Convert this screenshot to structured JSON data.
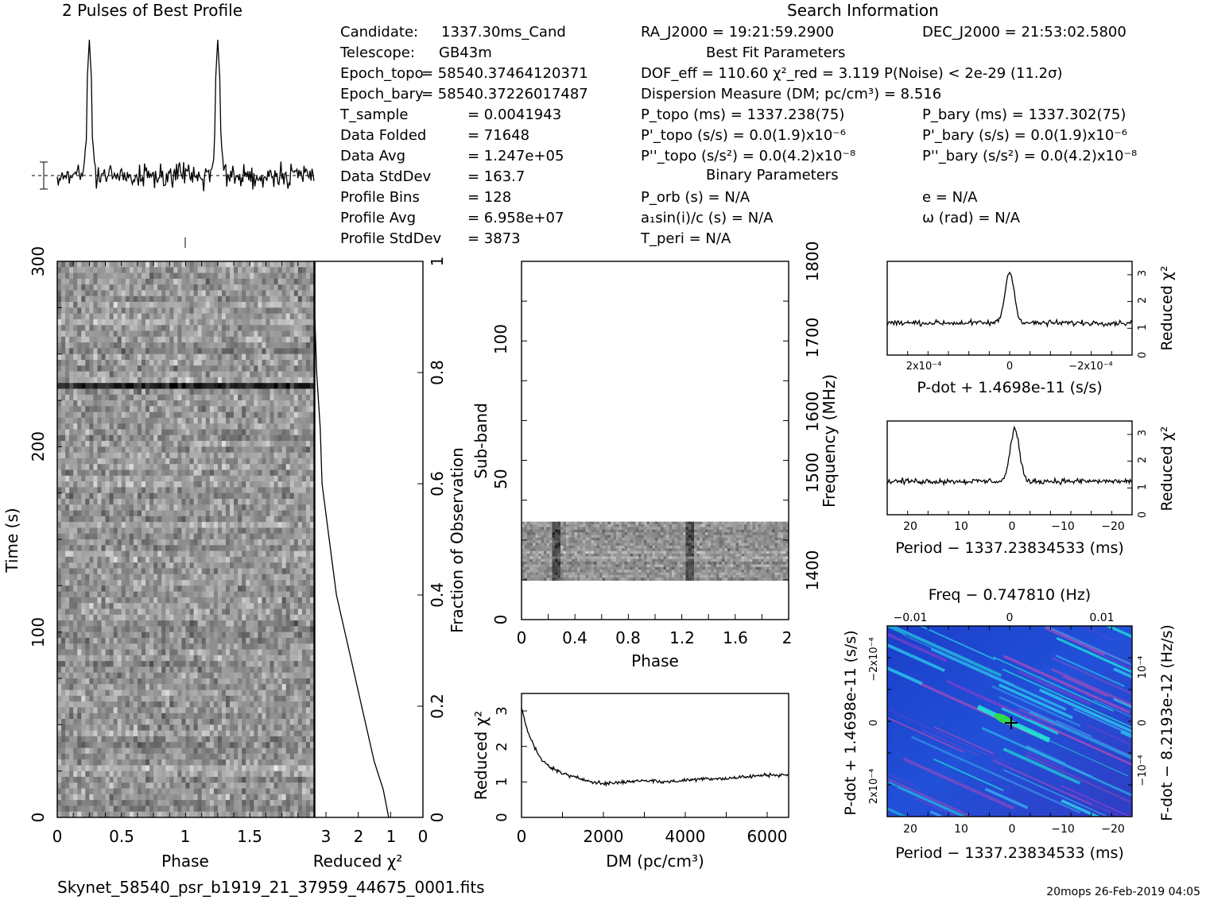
{
  "header": {
    "profile_title": "2 Pulses of Best Profile",
    "search_title": "Search Information",
    "best_fit_title": "Best Fit Parameters",
    "binary_title": "Binary Parameters"
  },
  "info_left": [
    {
      "label": "Candidate:",
      "value": "1337.30ms_Cand"
    },
    {
      "label": "Telescope:",
      "value": "GB43m"
    },
    {
      "label": "Epoch_topo",
      "value": "= 58540.37464120371"
    },
    {
      "label": "Epoch_bary",
      "value": "= 58540.37226017487"
    },
    {
      "label": "T_sample",
      "value": "=   0.0041943"
    },
    {
      "label": "Data Folded",
      "value": "=   71648"
    },
    {
      "label": "Data Avg",
      "value": "=   1.247e+05"
    },
    {
      "label": "Data StdDev",
      "value": "=   163.7"
    },
    {
      "label": "Profile Bins",
      "value": "=   128"
    },
    {
      "label": "Profile Avg",
      "value": "=   6.958e+07"
    },
    {
      "label": "Profile StdDev",
      "value": "=   3873"
    }
  ],
  "info_mid": {
    "ra": "RA_J2000 = 19:21:59.2900",
    "dof": "DOF_eff = 110.60  χ²_red = 3.119   P(Noise) < 2e-29  (11.2σ)",
    "dm": "Dispersion Measure (DM; pc/cm³) = 8.516",
    "p_topo": "P_topo (ms) =  1337.238(75)",
    "pd_topo": "P'_topo (s/s) = 0.0(1.9)x10⁻⁶",
    "pdd_topo": "P''_topo (s/s²) = 0.0(4.2)x10⁻⁸",
    "p_orb": "P_orb (s) = N/A",
    "a1sini": "a₁sin(i)/c (s) = N/A",
    "t_peri": "T_peri = N/A"
  },
  "info_right": {
    "dec": "DEC_J2000 = 21:53:02.5800",
    "p_bary": "P_bary (ms) =  1337.302(75)",
    "pd_bary": "P'_bary (s/s) = 0.0(1.9)x10⁻⁶",
    "pdd_bary": "P''_bary (s/s²) = 0.0(4.2)x10⁻⁸",
    "ecc": "e = N/A",
    "omega": "ω (rad) = N/A"
  },
  "footer": {
    "filename": "Skynet_58540_psr_b1919_21_37959_44675_0001.fits",
    "stamp": "20mops 26-Feb-2019 04:05"
  },
  "chart_data": [
    {
      "type": "line",
      "name_ref": "profile",
      "title": "2 Pulses of Best Profile",
      "xlabel": "",
      "ylabel": "",
      "xlim": [
        0,
        2
      ],
      "peaks_at_phase": [
        0.25,
        1.25
      ]
    },
    {
      "type": "heatmap",
      "name_ref": "time-phase",
      "xlabel": "Phase",
      "ylabel": "Time (s)",
      "xlim": [
        0,
        2
      ],
      "ylim": [
        0,
        300
      ],
      "xticks": [
        "0",
        "0.5",
        "1",
        "1.5"
      ],
      "yticks": [
        "0",
        "100",
        "200",
        "300"
      ]
    },
    {
      "type": "line",
      "name_ref": "time-chi2",
      "xlabel": "Reduced χ²",
      "ylabel": "Fraction of Observation",
      "xlim": [
        3,
        0
      ],
      "ylim": [
        0,
        1
      ],
      "xticks": [
        "3",
        "2",
        "1",
        "0"
      ],
      "yticks": [
        "0",
        "0.2",
        "0.4",
        "0.6",
        "0.8",
        "1"
      ],
      "x": [
        0.95,
        1.1,
        1.35,
        1.7,
        2.05,
        2.4,
        2.6,
        2.8,
        2.85,
        2.95,
        3.0,
        3.0
      ],
      "y": [
        0.0,
        0.05,
        0.1,
        0.2,
        0.3,
        0.4,
        0.5,
        0.6,
        0.7,
        0.8,
        0.9,
        1.0
      ]
    },
    {
      "type": "heatmap",
      "name_ref": "subband-phase",
      "xlabel": "Phase",
      "ylabel": "Sub-band",
      "ylabel2": "Frequency (MHz)",
      "xlim": [
        0,
        2
      ],
      "ylim": [
        0,
        128
      ],
      "xticks": [
        "0",
        "0.4",
        "0.8",
        "1.2",
        "1.6",
        "2"
      ],
      "yticks": [
        "0",
        "50",
        "100"
      ],
      "y2ticks": [
        "1400",
        "1500",
        "1600",
        "1700",
        "1800"
      ],
      "y2lim": [
        1350,
        1800
      ],
      "data_band": [
        14,
        35
      ]
    },
    {
      "type": "line",
      "name_ref": "dm-chi2",
      "xlabel": "DM (pc/cm³)",
      "ylabel": "Reduced χ²",
      "xlim": [
        0,
        6500
      ],
      "ylim": [
        0,
        3.5
      ],
      "xticks": [
        "0",
        "2000",
        "4000",
        "6000"
      ],
      "yticks": [
        "0",
        "1",
        "2",
        "3"
      ],
      "x": [
        0,
        100,
        300,
        500,
        800,
        1200,
        1600,
        2000,
        2500,
        3000,
        3500,
        4000,
        4500,
        5000,
        5500,
        6000,
        6500
      ],
      "y": [
        3.1,
        2.6,
        2.0,
        1.6,
        1.35,
        1.15,
        1.05,
        0.95,
        1.0,
        1.05,
        1.0,
        1.05,
        1.1,
        1.1,
        1.15,
        1.2,
        1.2
      ]
    },
    {
      "type": "line",
      "name_ref": "pdot-chi2",
      "xlabel": "P-dot + 1.4698e-11 (s/s)",
      "ylabel": "Reduced χ²",
      "xlim": [
        0.00032,
        -0.00032
      ],
      "ylim": [
        0,
        3.5
      ],
      "xticks": [
        "2x10⁻⁴",
        "0",
        "−2x10⁻⁴"
      ],
      "yticks": [
        "0",
        "1",
        "2",
        "3"
      ],
      "peak": {
        "x": 0,
        "y": 3.1
      },
      "baseline": 1.2
    },
    {
      "type": "line",
      "name_ref": "period-chi2",
      "xlabel": "Period − 1337.23834533 (ms)",
      "ylabel": "Reduced χ²",
      "xlim": [
        25,
        -23
      ],
      "ylim": [
        0,
        3.5
      ],
      "xticks": [
        "20",
        "10",
        "0",
        "−10",
        "−20"
      ],
      "yticks": [
        "0",
        "1",
        "2",
        "3"
      ],
      "peak": {
        "x": 0,
        "y": 3.2
      },
      "baseline": 1.25
    },
    {
      "type": "heatmap",
      "name_ref": "period-pdot",
      "title": "Freq − 0.747810 (Hz)",
      "xlabel": "Period − 1337.23834533 (ms)",
      "ylabel": "P-dot + 1.4698e-11 (s/s)",
      "ylabel2": "F-dot − 8.2193e-12 (Hz/s)",
      "xlim": [
        25,
        -23
      ],
      "xticks": [
        "20",
        "10",
        "0",
        "−10",
        "−20"
      ],
      "xticks_top": [
        "−0.01",
        "0",
        "0.01"
      ],
      "yticks": [
        "2x10⁻⁴",
        "0",
        "−2x10⁻⁴"
      ],
      "y2ticks": [
        "−10⁻⁴",
        "0",
        "10⁻⁴"
      ],
      "best": {
        "x": 0,
        "y": 0
      }
    }
  ]
}
